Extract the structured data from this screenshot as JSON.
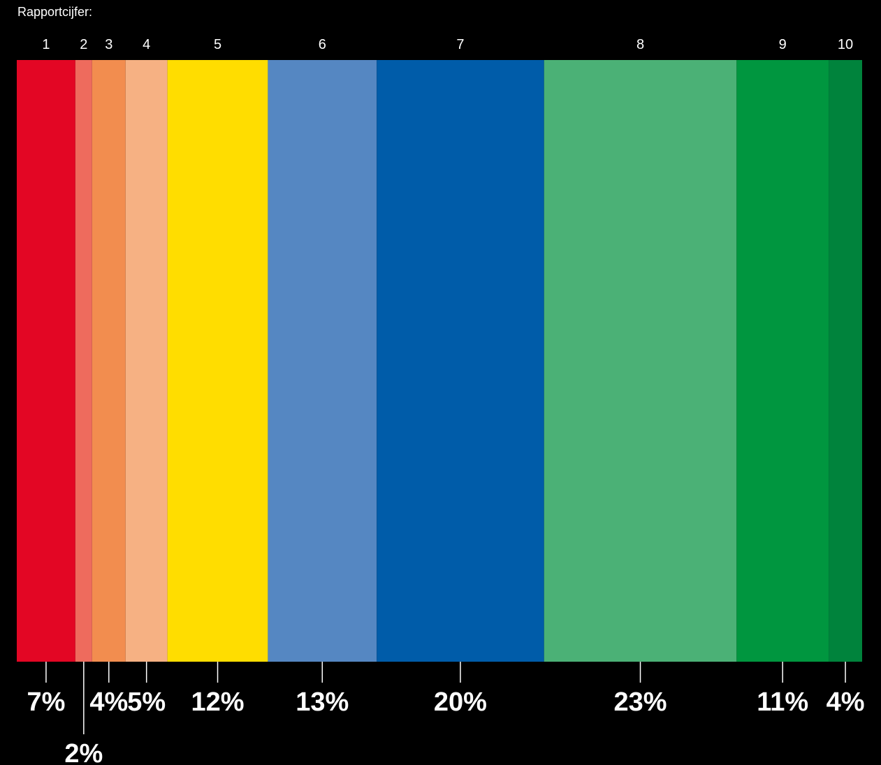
{
  "chart_data": {
    "type": "bar",
    "orientation": "stacked-horizontal-100",
    "category_axis_label": "Rapportcijfer:",
    "categories": [
      "1",
      "2",
      "3",
      "4",
      "5",
      "6",
      "7",
      "8",
      "9",
      "10"
    ],
    "values": [
      7,
      2,
      4,
      5,
      12,
      13,
      20,
      23,
      11,
      4
    ],
    "value_labels": [
      "7%",
      "2%",
      "4%",
      "5%",
      "12%",
      "13%",
      "20%",
      "23%",
      "11%",
      "4%"
    ],
    "colors": [
      "#e30624",
      "#ee6b5d",
      "#f28d4f",
      "#f6b183",
      "#ffdd00",
      "#5587c2",
      "#005ca9",
      "#4bb176",
      "#00963f",
      "#00833c"
    ],
    "background": "#000000",
    "text_color": "#ffffff",
    "grid": false,
    "legend": "none"
  }
}
